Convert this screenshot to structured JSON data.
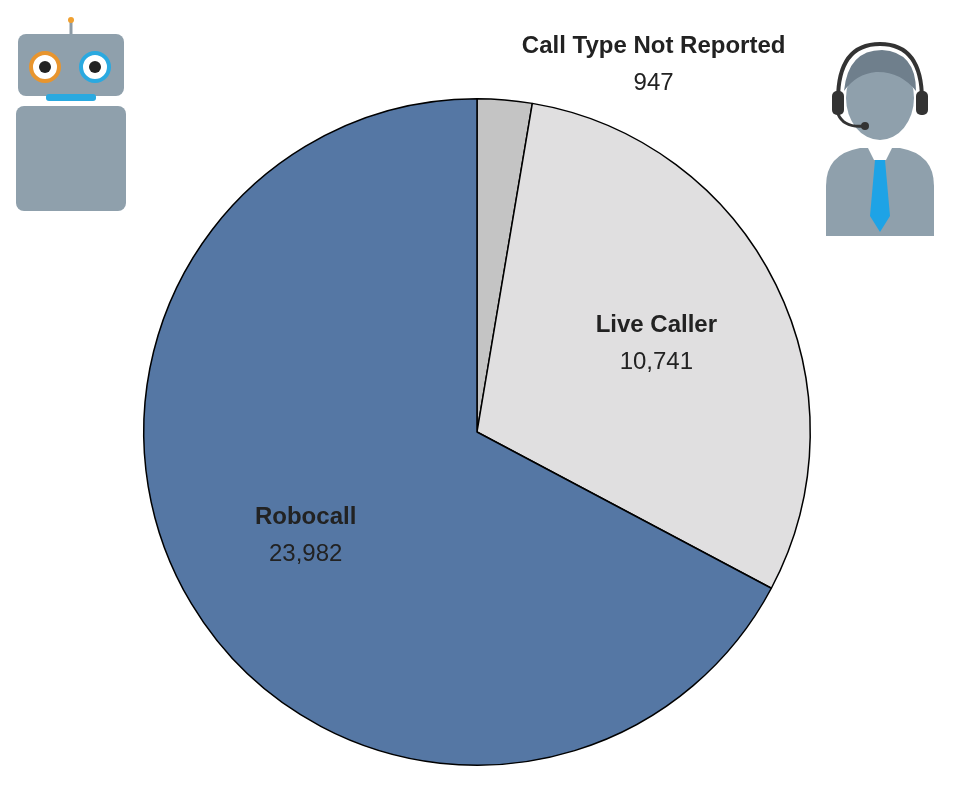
{
  "chart_data": {
    "type": "pie",
    "categories": [
      "Call Type Not Reported",
      "Live Caller",
      "Robocall"
    ],
    "values": [
      947,
      10741,
      23982
    ],
    "value_labels": [
      "947",
      "10,741",
      "23,982"
    ],
    "colors": [
      "#c4c4c4",
      "#e0dfe0",
      "#5577a4"
    ],
    "data_labels": true
  }
}
